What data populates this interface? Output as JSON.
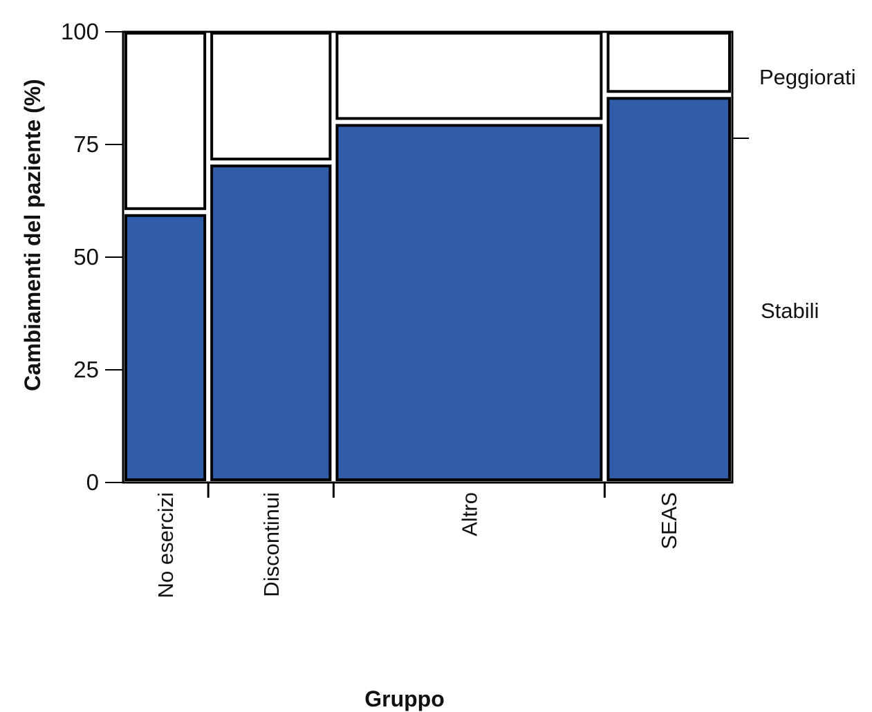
{
  "chart_data": {
    "type": "bar",
    "subtype": "mosaic",
    "xlabel": "Gruppo",
    "ylabel": "Cambiamenti del paziente (%)",
    "ylim": [
      0,
      100
    ],
    "yticks": [
      "0",
      "25",
      "50",
      "75",
      "100"
    ],
    "categories": [
      "No esercizi",
      "Discontinui",
      "Altro",
      "SEAS"
    ],
    "category_widths": [
      0.13,
      0.195,
      0.435,
      0.2
    ],
    "series": [
      {
        "name": "Stabili",
        "values": [
          60,
          71,
          80,
          86
        ],
        "color": "#305ca8"
      },
      {
        "name": "Peggiorati",
        "values": [
          40,
          29,
          20,
          14
        ],
        "color": "#ffffff"
      }
    ],
    "legend": {
      "placement": "right",
      "labels": [
        "Peggiorati",
        "Stabili"
      ]
    },
    "grid": false
  }
}
